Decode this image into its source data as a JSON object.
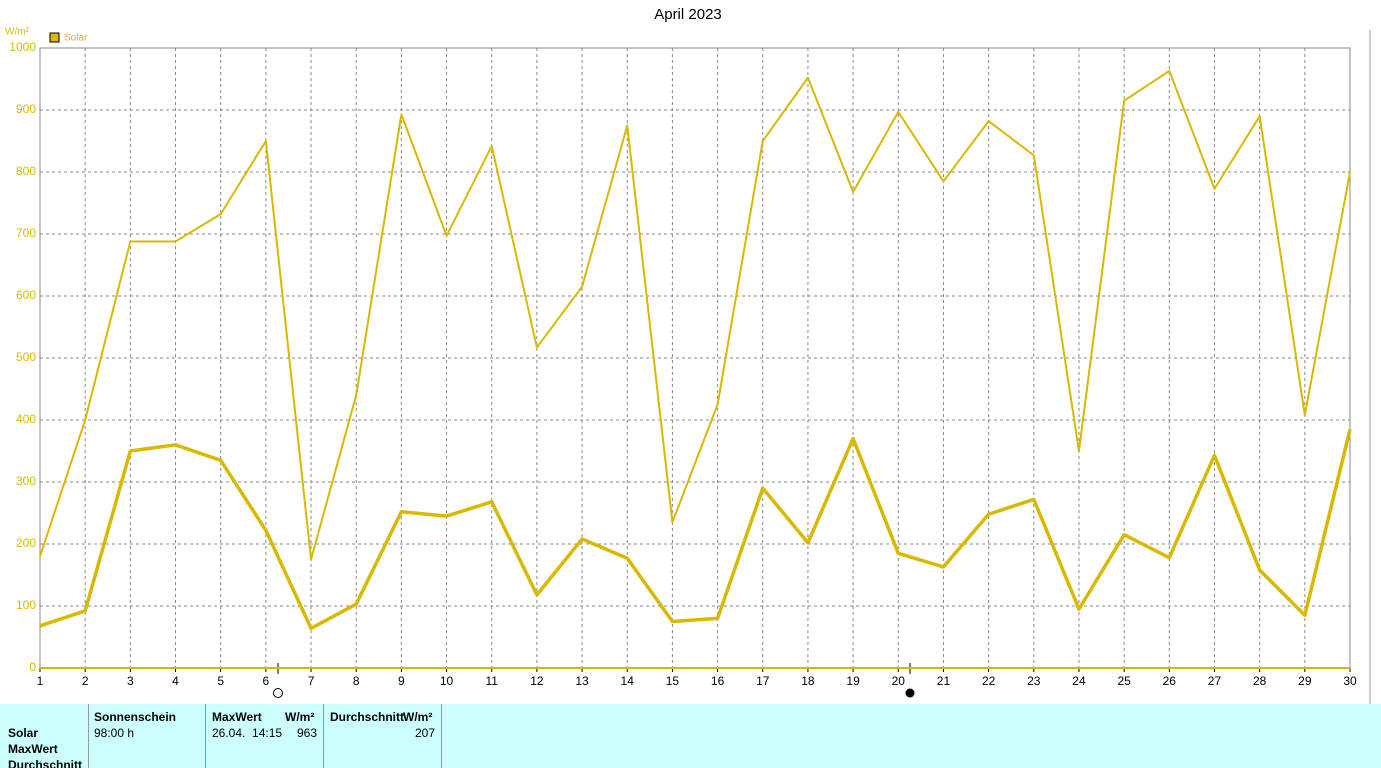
{
  "chart_data": {
    "type": "line",
    "title": "April 2023",
    "y_label": "W/m²",
    "x": [
      1,
      2,
      3,
      4,
      5,
      6,
      7,
      8,
      9,
      10,
      11,
      12,
      13,
      14,
      15,
      16,
      17,
      18,
      19,
      20,
      21,
      22,
      23,
      24,
      25,
      26,
      27,
      28,
      29,
      30
    ],
    "xlim": [
      1,
      30
    ],
    "xticks": [
      1,
      2,
      3,
      4,
      5,
      6,
      7,
      8,
      9,
      10,
      11,
      12,
      13,
      14,
      15,
      16,
      17,
      18,
      19,
      20,
      21,
      22,
      23,
      24,
      25,
      26,
      27,
      28,
      29,
      30
    ],
    "ylim": [
      0,
      1000
    ],
    "yticks": [
      0,
      100,
      200,
      300,
      400,
      500,
      600,
      700,
      800,
      900,
      1000
    ],
    "grid": true,
    "series": [
      {
        "name": "Solar",
        "color": "#d9b800",
        "values": [
          180,
          400,
          688,
          688,
          732,
          850,
          175,
          440,
          893,
          697,
          842,
          517,
          615,
          875,
          235,
          425,
          850,
          952,
          768,
          897,
          785,
          882,
          827,
          350,
          915,
          963,
          773,
          890,
          408,
          800
        ]
      },
      {
        "color": "#d9b800",
        "values": [
          68,
          92,
          350,
          360,
          335,
          222,
          64,
          103,
          252,
          245,
          268,
          118,
          208,
          177,
          75,
          80,
          290,
          202,
          370,
          185,
          163,
          248,
          272,
          95,
          215,
          178,
          343,
          158,
          85,
          385
        ]
      }
    ]
  },
  "table": {
    "row_labels": [
      "Solar",
      "MaxWert",
      "Durchschnitt"
    ],
    "headers": [
      "Sonnenschein",
      "MaxWert",
      "W/m²",
      "Durchschnitt",
      "W/m²"
    ],
    "cells": [
      "98:00 h",
      "26.04.  14:15",
      "963",
      "207"
    ]
  }
}
